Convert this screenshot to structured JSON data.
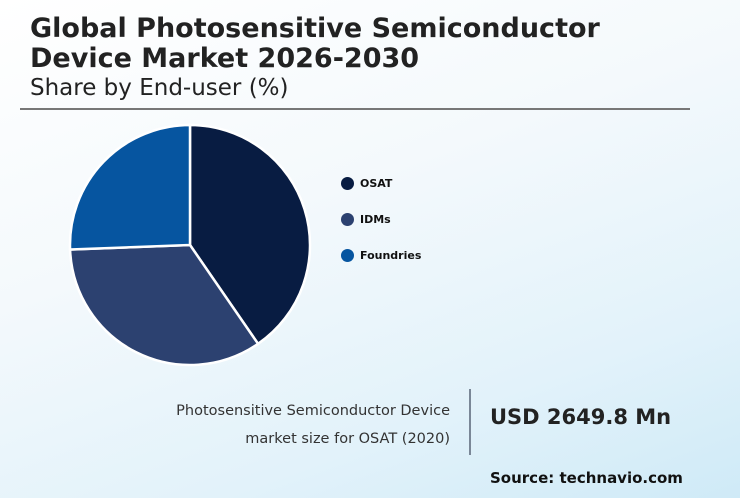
{
  "header": {
    "title_line1": "Global Photosensitive Semiconductor",
    "title_line2": "Device Market 2026-2030",
    "subtitle": "Share by End-user (%)"
  },
  "chart_data": {
    "type": "pie",
    "title": "Global Photosensitive Semiconductor Device Market 2026-2030",
    "subtitle": "Share by End-user (%)",
    "categories": [
      "OSAT",
      "IDMs",
      "Foundries"
    ],
    "values": [
      40.4,
      34.0,
      25.6
    ],
    "colors": [
      "#081c42",
      "#2c4170",
      "#0655a0"
    ],
    "start_angle": "12 o'clock, clockwise",
    "legend_position": "right"
  },
  "legend": {
    "items": [
      {
        "label": "OSAT",
        "color": "#081c42"
      },
      {
        "label": "IDMs",
        "color": "#2c4170"
      },
      {
        "label": "Foundries",
        "color": "#0655a0"
      }
    ]
  },
  "stat": {
    "label_line1": "Photosensitive Semiconductor Device",
    "label_line2": "market size for OSAT (2020)",
    "value": "USD 2649.8 Mn"
  },
  "footer": {
    "source": "Source: technavio.com"
  }
}
